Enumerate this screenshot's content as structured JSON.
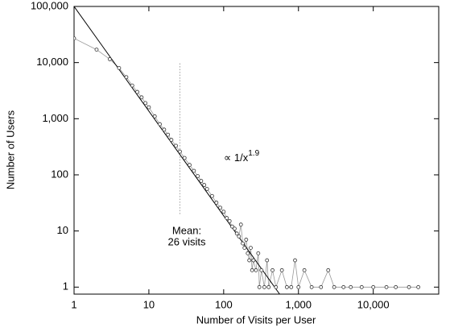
{
  "chart_data": {
    "type": "scatter",
    "x_label": "Number of Visits per User",
    "y_label": "Number of Users",
    "log_x": true,
    "log_y": true,
    "grid": false,
    "color": "#333333",
    "line_color": "#999999",
    "xlim": [
      1,
      75000
    ],
    "ylim": [
      0.75,
      100000
    ],
    "xticks": [
      1,
      10,
      100,
      {
        "value": 1000,
        "label": "1,000"
      },
      {
        "value": 10000,
        "label": "10,000"
      }
    ],
    "yticks": [
      1,
      10,
      100,
      {
        "value": 1000,
        "label": "1,000"
      },
      {
        "value": 10000,
        "label": "10,000"
      },
      {
        "value": 100000,
        "label": "100,000"
      }
    ],
    "x": [
      1,
      2,
      3,
      4,
      5,
      6,
      7,
      8,
      9,
      10,
      12,
      14,
      16,
      18,
      20,
      23,
      26,
      30,
      35,
      40,
      45,
      50,
      55,
      60,
      70,
      80,
      90,
      100,
      110,
      120,
      130,
      140,
      150,
      160,
      170,
      180,
      190,
      200,
      210,
      220,
      230,
      240,
      250,
      270,
      290,
      300,
      320,
      350,
      380,
      400,
      450,
      500,
      600,
      700,
      800,
      900,
      1000,
      1200,
      1500,
      2000,
      2500,
      3000,
      4000,
      5000,
      7000,
      10000,
      15000,
      20000,
      30000,
      40000
    ],
    "values": [
      27000,
      17000,
      11500,
      8000,
      5500,
      3900,
      3000,
      2400,
      1900,
      1600,
      1100,
      800,
      640,
      520,
      420,
      330,
      260,
      200,
      150,
      118,
      95,
      78,
      66,
      56,
      42,
      32,
      26,
      22,
      17,
      15,
      12,
      11,
      9,
      8,
      13,
      6,
      5,
      7,
      4,
      3,
      5,
      2,
      3,
      2,
      4,
      1,
      2,
      1,
      3,
      1,
      2,
      1,
      2,
      1,
      1,
      3,
      1,
      2,
      1,
      1,
      2,
      1,
      1,
      1,
      1,
      1,
      1,
      1,
      1,
      1
    ],
    "fit_line": {
      "x": [
        1,
        560
      ],
      "y": [
        100000,
        0.75
      ]
    },
    "fit_label": {
      "text": "∝ 1/x",
      "superscript": "1.9"
    },
    "mean_line": {
      "x": 26,
      "y": [
        20,
        10000
      ]
    },
    "mean_label": [
      "Mean:",
      "26 visits"
    ]
  }
}
